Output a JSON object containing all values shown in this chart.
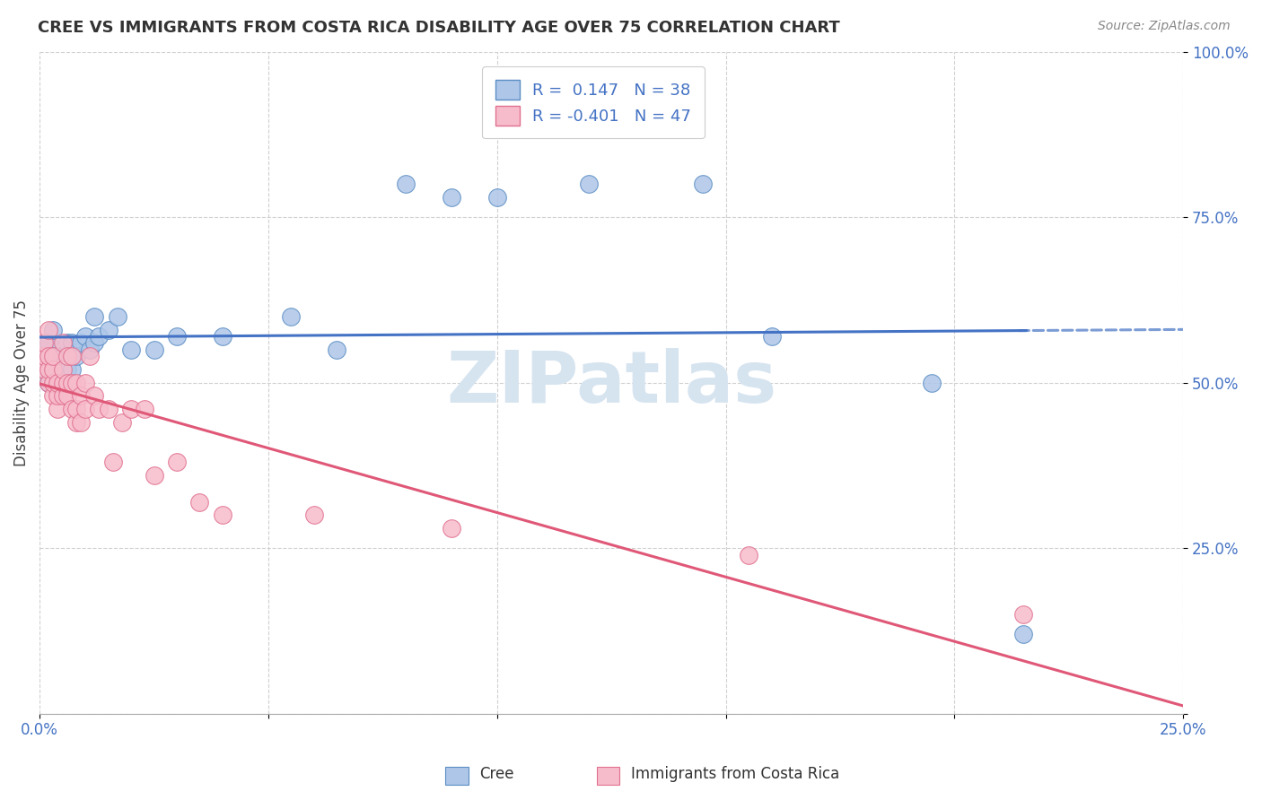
{
  "title": "CREE VS IMMIGRANTS FROM COSTA RICA DISABILITY AGE OVER 75 CORRELATION CHART",
  "source": "Source: ZipAtlas.com",
  "ylabel": "Disability Age Over 75",
  "x_range": [
    0,
    0.25
  ],
  "y_range": [
    0,
    1.0
  ],
  "cree_R": 0.147,
  "cree_N": 38,
  "costa_rica_R": -0.401,
  "costa_rica_N": 47,
  "cree_color": "#aec6e8",
  "cree_edge_color": "#5b8ec4",
  "cree_line_color": "#4472c4",
  "costa_rica_color": "#f7bccb",
  "costa_rica_edge_color": "#e07090",
  "costa_rica_line_color": "#e05878",
  "watermark_color": "#d6e4f0",
  "cree_x": [
    0.001,
    0.001,
    0.002,
    0.002,
    0.003,
    0.003,
    0.003,
    0.004,
    0.004,
    0.005,
    0.005,
    0.006,
    0.006,
    0.007,
    0.007,
    0.008,
    0.009,
    0.01,
    0.011,
    0.012,
    0.012,
    0.013,
    0.015,
    0.017,
    0.02,
    0.025,
    0.03,
    0.04,
    0.055,
    0.065,
    0.08,
    0.09,
    0.1,
    0.12,
    0.145,
    0.16,
    0.195,
    0.215
  ],
  "cree_y": [
    0.52,
    0.55,
    0.5,
    0.56,
    0.5,
    0.54,
    0.58,
    0.52,
    0.54,
    0.5,
    0.54,
    0.52,
    0.56,
    0.52,
    0.56,
    0.54,
    0.56,
    0.57,
    0.55,
    0.56,
    0.6,
    0.57,
    0.58,
    0.6,
    0.55,
    0.55,
    0.57,
    0.57,
    0.6,
    0.55,
    0.8,
    0.78,
    0.78,
    0.8,
    0.8,
    0.57,
    0.5,
    0.12
  ],
  "costa_rica_x": [
    0.001,
    0.001,
    0.001,
    0.002,
    0.002,
    0.002,
    0.002,
    0.003,
    0.003,
    0.003,
    0.003,
    0.004,
    0.004,
    0.004,
    0.005,
    0.005,
    0.005,
    0.005,
    0.006,
    0.006,
    0.006,
    0.007,
    0.007,
    0.007,
    0.008,
    0.008,
    0.008,
    0.009,
    0.009,
    0.01,
    0.01,
    0.011,
    0.012,
    0.013,
    0.015,
    0.016,
    0.018,
    0.02,
    0.023,
    0.025,
    0.03,
    0.035,
    0.04,
    0.06,
    0.09,
    0.155,
    0.215
  ],
  "costa_rica_y": [
    0.52,
    0.54,
    0.56,
    0.5,
    0.52,
    0.54,
    0.58,
    0.48,
    0.5,
    0.52,
    0.54,
    0.46,
    0.48,
    0.5,
    0.48,
    0.5,
    0.52,
    0.56,
    0.48,
    0.5,
    0.54,
    0.46,
    0.5,
    0.54,
    0.44,
    0.46,
    0.5,
    0.44,
    0.48,
    0.46,
    0.5,
    0.54,
    0.48,
    0.46,
    0.46,
    0.38,
    0.44,
    0.46,
    0.46,
    0.36,
    0.38,
    0.32,
    0.3,
    0.3,
    0.28,
    0.24,
    0.15
  ],
  "legend_label_cree": "R =  0.147   N = 38",
  "legend_label_cr": "R = -0.401   N = 47",
  "bottom_label_cree": "Cree",
  "bottom_label_cr": "Immigrants from Costa Rica"
}
